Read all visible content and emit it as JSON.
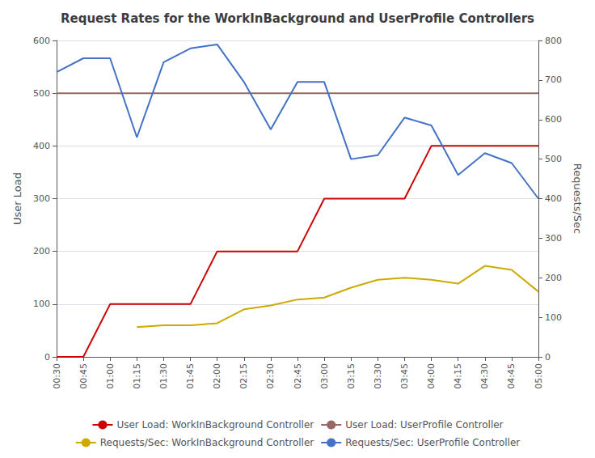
{
  "chart_data": {
    "type": "line",
    "title": "Request Rates for the WorkInBackground and UserProfile Controllers",
    "ylabel": "User Load",
    "y2label": "Requests/Sec",
    "categories": [
      "00:30",
      "00:45",
      "01:00",
      "01:15",
      "01:30",
      "01:45",
      "02:00",
      "02:15",
      "02:30",
      "02:45",
      "03:00",
      "03:15",
      "03:30",
      "03:45",
      "04:00",
      "04:15",
      "04:30",
      "04:45",
      "05:00"
    ],
    "series": [
      {
        "name": "User Load: WorkInBackground Controller",
        "color": "#cc0000",
        "values": [
          0,
          0,
          100,
          100,
          100,
          100,
          200,
          200,
          200,
          200,
          300,
          300,
          300,
          300,
          400,
          400,
          400,
          400,
          400
        ]
      },
      {
        "name": "User Load: UserProfile Controller",
        "color": "#996666",
        "values": [
          500,
          500,
          500,
          500,
          500,
          500,
          500,
          500,
          500,
          500,
          500,
          500,
          500,
          500,
          500,
          500,
          500,
          500,
          500
        ]
      },
      {
        "name": "Requests/Sec: WorkInBackground Controller",
        "color": "#ccaa00",
        "axis": "y2",
        "values": [
          null,
          null,
          null,
          75,
          80,
          80,
          85,
          120,
          130,
          145,
          150,
          175,
          195,
          200,
          195,
          185,
          230,
          220,
          165
        ]
      },
      {
        "name": "Requests/Sec: UserProfile Controller",
        "color": "#4472c4",
        "axis": "y2",
        "values": [
          720,
          755,
          755,
          555,
          745,
          780,
          790,
          695,
          575,
          695,
          695,
          500,
          510,
          605,
          585,
          460,
          515,
          490,
          400
        ]
      }
    ],
    "ylim": [
      0,
      600
    ],
    "yticks": [
      0,
      100,
      200,
      300,
      400,
      500,
      600
    ],
    "y2lim": [
      0,
      800
    ],
    "y2ticks": [
      0,
      100,
      200,
      300,
      400,
      500,
      600,
      700,
      800
    ],
    "grid": true,
    "legend": "bottom"
  }
}
